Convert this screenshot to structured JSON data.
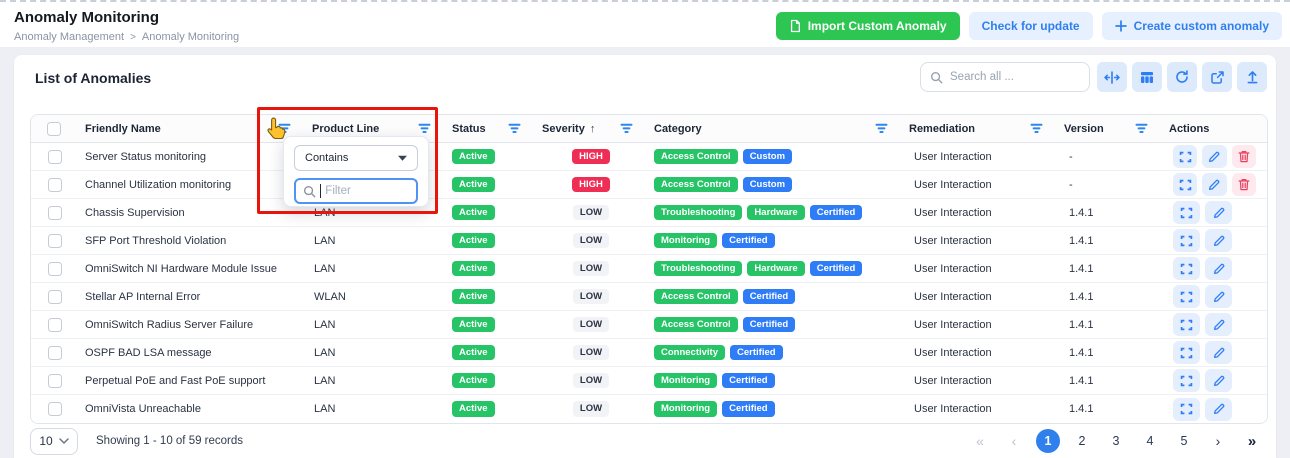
{
  "header": {
    "title": "Anomaly Monitoring",
    "breadcrumb": [
      "Anomaly Management",
      "Anomaly Monitoring"
    ],
    "breadcrumb_separator": ">",
    "buttons": {
      "import_label": "Import Custom Anomaly",
      "import_icon": "document-icon",
      "check_label": "Check for update",
      "create_label": "Create custom anomaly",
      "create_icon": "plus-icon"
    }
  },
  "card": {
    "title": "List of Anomalies",
    "search_placeholder": "Search all ...",
    "toolbar_icons": [
      "column-resize-icon",
      "table-columns-icon",
      "refresh-icon",
      "open-external-icon",
      "upload-icon"
    ]
  },
  "filter_popup": {
    "operator_value": "Contains",
    "operator_caret_icon": "caret-down-icon",
    "filter_placeholder": "Filter",
    "search_icon": "search-icon"
  },
  "table": {
    "columns": [
      {
        "label": "",
        "type": "checkbox",
        "filter": false
      },
      {
        "label": "Friendly Name",
        "filter": true
      },
      {
        "label": "Product Line",
        "filter": true
      },
      {
        "label": "Status",
        "filter": true
      },
      {
        "label": "Severity",
        "filter": true,
        "sort": "asc",
        "sort_glyph": "↑"
      },
      {
        "label": "Category",
        "filter": true
      },
      {
        "label": "Remediation",
        "filter": true
      },
      {
        "label": "Version",
        "filter": true
      },
      {
        "label": "Actions",
        "filter": false
      }
    ],
    "rows": [
      {
        "name": "Server Status monitoring",
        "product_line": "",
        "status": "Active",
        "severity": "HIGH",
        "categories": [
          {
            "label": "Access Control",
            "type": "green"
          },
          {
            "label": "Custom",
            "type": "blue"
          }
        ],
        "remediation": "User Interaction",
        "version": "-",
        "actions": [
          "expand-icon",
          "edit-icon",
          "delete-icon"
        ]
      },
      {
        "name": "Channel Utilization monitoring",
        "product_line": "",
        "status": "Active",
        "severity": "HIGH",
        "categories": [
          {
            "label": "Access Control",
            "type": "green"
          },
          {
            "label": "Custom",
            "type": "blue"
          }
        ],
        "remediation": "User Interaction",
        "version": "-",
        "actions": [
          "expand-icon",
          "edit-icon",
          "delete-icon"
        ]
      },
      {
        "name": "Chassis Supervision",
        "product_line": "LAN",
        "status": "Active",
        "severity": "LOW",
        "categories": [
          {
            "label": "Troubleshooting",
            "type": "green"
          },
          {
            "label": "Hardware",
            "type": "green"
          },
          {
            "label": "Certified",
            "type": "blue"
          }
        ],
        "remediation": "User Interaction",
        "version": "1.4.1",
        "actions": [
          "expand-icon",
          "edit-icon"
        ]
      },
      {
        "name": "SFP Port Threshold Violation",
        "product_line": "LAN",
        "status": "Active",
        "severity": "LOW",
        "categories": [
          {
            "label": "Monitoring",
            "type": "green"
          },
          {
            "label": "Certified",
            "type": "blue"
          }
        ],
        "remediation": "User Interaction",
        "version": "1.4.1",
        "actions": [
          "expand-icon",
          "edit-icon"
        ]
      },
      {
        "name": "OmniSwitch NI Hardware Module Issue",
        "product_line": "LAN",
        "status": "Active",
        "severity": "LOW",
        "categories": [
          {
            "label": "Troubleshooting",
            "type": "green"
          },
          {
            "label": "Hardware",
            "type": "green"
          },
          {
            "label": "Certified",
            "type": "blue"
          }
        ],
        "remediation": "User Interaction",
        "version": "1.4.1",
        "actions": [
          "expand-icon",
          "edit-icon"
        ]
      },
      {
        "name": "Stellar AP Internal Error",
        "product_line": "WLAN",
        "status": "Active",
        "severity": "LOW",
        "categories": [
          {
            "label": "Access Control",
            "type": "green"
          },
          {
            "label": "Certified",
            "type": "blue"
          }
        ],
        "remediation": "User Interaction",
        "version": "1.4.1",
        "actions": [
          "expand-icon",
          "edit-icon"
        ]
      },
      {
        "name": "OmniSwitch Radius Server Failure",
        "product_line": "LAN",
        "status": "Active",
        "severity": "LOW",
        "categories": [
          {
            "label": "Access Control",
            "type": "green"
          },
          {
            "label": "Certified",
            "type": "blue"
          }
        ],
        "remediation": "User Interaction",
        "version": "1.4.1",
        "actions": [
          "expand-icon",
          "edit-icon"
        ]
      },
      {
        "name": "OSPF BAD LSA message",
        "product_line": "LAN",
        "status": "Active",
        "severity": "LOW",
        "categories": [
          {
            "label": "Connectivity",
            "type": "green"
          },
          {
            "label": "Certified",
            "type": "blue"
          }
        ],
        "remediation": "User Interaction",
        "version": "1.4.1",
        "actions": [
          "expand-icon",
          "edit-icon"
        ]
      },
      {
        "name": "Perpetual PoE and Fast PoE support",
        "product_line": "LAN",
        "status": "Active",
        "severity": "LOW",
        "categories": [
          {
            "label": "Monitoring",
            "type": "green"
          },
          {
            "label": "Certified",
            "type": "blue"
          }
        ],
        "remediation": "User Interaction",
        "version": "1.4.1",
        "actions": [
          "expand-icon",
          "edit-icon"
        ]
      },
      {
        "name": "OmniVista Unreachable",
        "product_line": "LAN",
        "status": "Active",
        "severity": "LOW",
        "categories": [
          {
            "label": "Monitoring",
            "type": "green"
          },
          {
            "label": "Certified",
            "type": "blue"
          }
        ],
        "remediation": "User Interaction",
        "version": "1.4.1",
        "actions": [
          "expand-icon",
          "edit-icon"
        ]
      }
    ]
  },
  "pagination": {
    "page_size": "10",
    "showing": "Showing 1 - 10 of 59 records",
    "first_glyph": "«",
    "prev_glyph": "‹",
    "next_glyph": "›",
    "last_glyph": "»",
    "pages": [
      "1",
      "2",
      "3",
      "4",
      "5"
    ],
    "active_page": "1"
  },
  "annotation": {
    "type": "highlight-box",
    "color": "#e8150d"
  },
  "colors": {
    "accent_blue": "#2e7cf6",
    "light_blue_bg": "#e7f0fe",
    "green": "#26c467",
    "green_button": "#2dc653",
    "severity_high": "#ef2e55",
    "severity_low_bg": "#f2f3f6",
    "tag_blue": "#2e7cf6",
    "delete_red": "#e8415f",
    "delete_bg": "#fde9ee",
    "annotation_red": "#e8150d",
    "page_bg": "#edeff4"
  }
}
